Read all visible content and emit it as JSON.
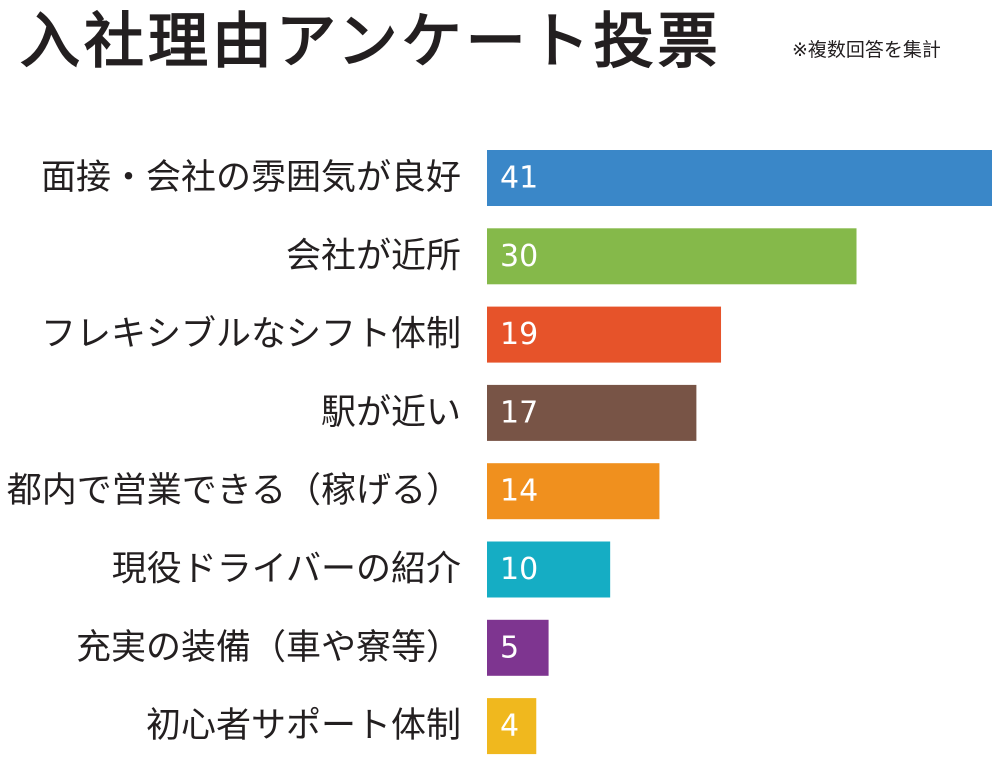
{
  "chart_data": {
    "type": "bar",
    "orientation": "horizontal",
    "title": "入社理由アンケート投票",
    "subtitle": "※複数回答を集計",
    "categories": [
      "面接・会社の雰囲気が良好",
      "会社が近所",
      "フレキシブルなシフト体制",
      "駅が近い",
      "都内で営業できる（稼げる）",
      "現役ドライバーの紹介",
      "充実の装備（車や寮等）",
      "初心者サポート体制"
    ],
    "values": [
      41,
      30,
      19,
      17,
      14,
      10,
      5,
      4
    ],
    "colors": [
      "#3a87c8",
      "#85b94a",
      "#e6532a",
      "#785446",
      "#f0901e",
      "#15adc4",
      "#7e3590",
      "#f0b81e"
    ],
    "xlim": [
      0,
      41
    ],
    "grid": false,
    "legend": "none"
  }
}
